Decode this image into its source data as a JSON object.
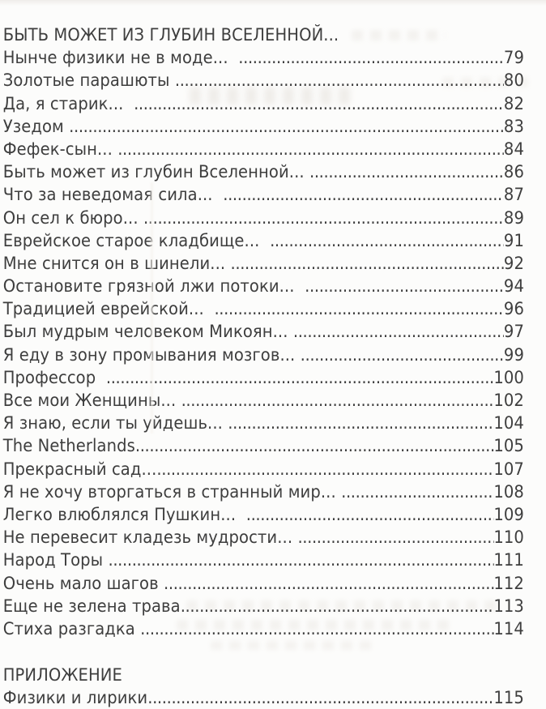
{
  "page": {
    "background": "#fcfcfb",
    "text_color": "#3e3e3e"
  },
  "toc": {
    "section_heading": "БЫТЬ МОЖЕТ ИЗ ГЛУБИН ВСЕЛЕННОЙ...",
    "entries": [
      {
        "title": "Нынче физики не в моде...  ",
        "page": "79"
      },
      {
        "title": "Золотые парашюты ",
        "page": "80"
      },
      {
        "title": "Да, я старик...  ",
        "page": "82"
      },
      {
        "title": "Узедом ",
        "page": "83"
      },
      {
        "title": "Фефек-сын... ",
        "page": "84"
      },
      {
        "title": "Быть может из глубин Вселенной... ",
        "page": "86"
      },
      {
        "title": "Что за неведомая сила...  ",
        "page": "87"
      },
      {
        "title": "Он сел к бюро... ",
        "page": "89"
      },
      {
        "title": "Еврейское старое кладбище...  ",
        "page": "91"
      },
      {
        "title": "Мне снится он в шинели... ",
        "page": "92"
      },
      {
        "title": "Остановите грязной лжи потоки...  ",
        "page": "94"
      },
      {
        "title": "Традицией еврейской...  ",
        "page": "96"
      },
      {
        "title": "Был мудрым человеком Микоян... ",
        "page": "97"
      },
      {
        "title": "Я еду в зону промывания мозгов... ",
        "page": "99"
      },
      {
        "title": "Профессор  ",
        "page": "100"
      },
      {
        "title": "Все мои Женщины... ",
        "page": "102"
      },
      {
        "title": "Я знаю, если ты уйдешь... ",
        "page": "104"
      },
      {
        "title": "The Netherlands",
        "page": "105"
      },
      {
        "title": "Прекрасный сад...",
        "page": "107"
      },
      {
        "title": "Я не хочу вторгаться в странный мир... ",
        "page": "108"
      },
      {
        "title": "Легко влюблялся Пушкин...  ",
        "page": "109"
      },
      {
        "title": "Не перевесит кладезь мудрости... ",
        "page": "110"
      },
      {
        "title": "Народ Торы ",
        "page": "111"
      },
      {
        "title": "Очень мало шагов ",
        "page": "112"
      },
      {
        "title": "Еще не зелена трава",
        "page": "113"
      },
      {
        "title": "Стиха разгадка ",
        "page": "114"
      }
    ],
    "appendix": {
      "heading": "ПРИЛОЖЕНИЕ",
      "entries": [
        {
          "title": "Физики и лирики",
          "page": "115"
        }
      ]
    }
  }
}
